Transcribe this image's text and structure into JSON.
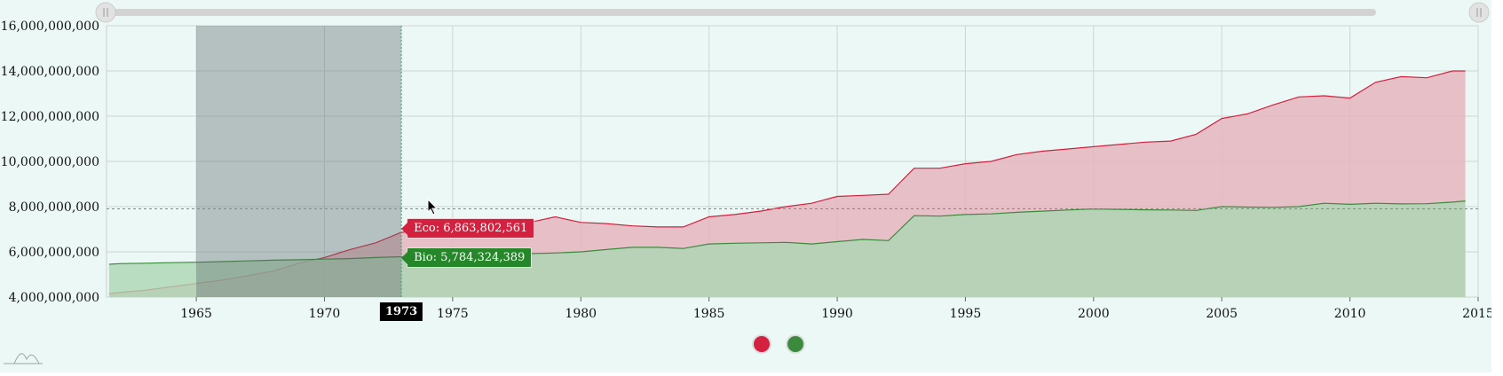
{
  "chart_data": {
    "type": "area",
    "title": "",
    "xlabel": "",
    "ylabel": "",
    "xlim": [
      1961.5,
      2015
    ],
    "ylim": [
      4000000000,
      16000000000
    ],
    "grid": true,
    "legend": "bottom-center",
    "x_ticks": [
      1965,
      1970,
      1975,
      1980,
      1985,
      1990,
      1995,
      2000,
      2005,
      2010,
      2015
    ],
    "x_tick_labels": [
      "1965",
      "1970",
      "1975",
      "1980",
      "1985",
      "1990",
      "1995",
      "2000",
      "2005",
      "2010",
      "2015"
    ],
    "y_ticks": [
      4000000000,
      6000000000,
      8000000000,
      10000000000,
      12000000000,
      14000000000,
      16000000000
    ],
    "y_tick_labels": [
      "4,000,000,000",
      "6,000,000,000",
      "8,000,000,000",
      "10,000,000,000",
      "12,000,000,000",
      "14,000,000,000",
      "16,000,000,000"
    ],
    "selected_range": [
      1965,
      1973
    ],
    "hover": {
      "year": 1973,
      "year_label": "1973",
      "eco_label": "Eco: 6,863,802,561",
      "bio_label": "Bio: 5,784,324,389",
      "reference_value": 7900000000
    },
    "x": [
      1961.6,
      1962,
      1963,
      1964,
      1965,
      1966,
      1967,
      1968,
      1969,
      1970,
      1971,
      1972,
      1973,
      1974,
      1975,
      1976,
      1977,
      1978,
      1979,
      1980,
      1981,
      1982,
      1983,
      1984,
      1985,
      1986,
      1987,
      1988,
      1989,
      1990,
      1991,
      1992,
      1993,
      1994,
      1995,
      1996,
      1997,
      1998,
      1999,
      2000,
      2001,
      2002,
      2003,
      2004,
      2005,
      2006,
      2007,
      2008,
      2009,
      2010,
      2011,
      2012,
      2013,
      2014,
      2014.5
    ],
    "series": [
      {
        "name": "Eco",
        "color": "#d3213f",
        "fill": "#e6b2bc",
        "values": [
          4150000000,
          4200000000,
          4300000000,
          4450000000,
          4600000000,
          4750000000,
          4950000000,
          5150000000,
          5500000000,
          5750000000,
          6100000000,
          6400000000,
          6863802561,
          6950000000,
          6900000000,
          7100000000,
          7250000000,
          7300000000,
          7550000000,
          7300000000,
          7250000000,
          7150000000,
          7100000000,
          7100000000,
          7550000000,
          7650000000,
          7800000000,
          8000000000,
          8150000000,
          8450000000,
          8500000000,
          8550000000,
          9700000000,
          9700000000,
          9900000000,
          10000000000,
          10300000000,
          10450000000,
          10550000000,
          10650000000,
          10750000000,
          10850000000,
          10900000000,
          11200000000,
          11900000000,
          12100000000,
          12500000000,
          12850000000,
          12900000000,
          12800000000,
          13500000000,
          13750000000,
          13700000000,
          14000000000,
          14000000000
        ]
      },
      {
        "name": "Bio",
        "color": "#3c8a3e",
        "fill": "#acd6b4",
        "values": [
          5450000000,
          5480000000,
          5500000000,
          5520000000,
          5540000000,
          5570000000,
          5600000000,
          5630000000,
          5650000000,
          5680000000,
          5700000000,
          5750000000,
          5784324389,
          5820000000,
          5850000000,
          5880000000,
          5900000000,
          5920000000,
          5950000000,
          6000000000,
          6100000000,
          6200000000,
          6200000000,
          6150000000,
          6350000000,
          6380000000,
          6400000000,
          6420000000,
          6350000000,
          6450000000,
          6550000000,
          6500000000,
          7600000000,
          7580000000,
          7650000000,
          7680000000,
          7750000000,
          7800000000,
          7850000000,
          7900000000,
          7880000000,
          7860000000,
          7850000000,
          7830000000,
          8000000000,
          7980000000,
          7970000000,
          8000000000,
          8150000000,
          8100000000,
          8150000000,
          8120000000,
          8130000000,
          8200000000,
          8250000000
        ]
      }
    ]
  }
}
